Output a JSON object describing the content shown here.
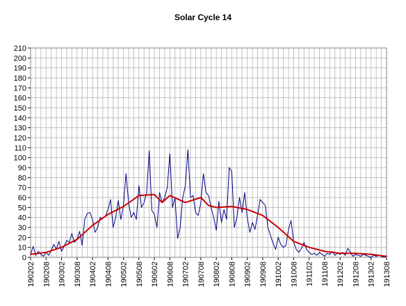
{
  "chart_data": {
    "type": "line",
    "title": "Solar Cycle 14",
    "xlabel": "",
    "ylabel": "",
    "ylim": [
      0,
      210
    ],
    "y_ticks": [
      0,
      10,
      20,
      30,
      40,
      50,
      60,
      70,
      80,
      90,
      100,
      110,
      120,
      130,
      140,
      150,
      160,
      170,
      180,
      190,
      200,
      210
    ],
    "x_tick_labels": [
      "190202",
      "190208",
      "190302",
      "190308",
      "190402",
      "190408",
      "190502",
      "190508",
      "190602",
      "190608",
      "190702",
      "190708",
      "190802",
      "190808",
      "190902",
      "190908",
      "191002",
      "191008",
      "191102",
      "191108",
      "191202",
      "191208",
      "191302",
      "191308"
    ],
    "x_start": "1902-02",
    "x_end": "1913-08",
    "grid": true,
    "legend": "none",
    "series": [
      {
        "color": "#000080",
        "kind": "monthly",
        "keys": [
          [
            "1902-02",
            3
          ],
          [
            "1902-03",
            11
          ],
          [
            "1902-04",
            2
          ],
          [
            "1902-05",
            6
          ],
          [
            "1902-06",
            3
          ],
          [
            "1902-07",
            1
          ],
          [
            "1902-08",
            5
          ],
          [
            "1902-09",
            2
          ],
          [
            "1902-10",
            7
          ],
          [
            "1902-11",
            13
          ],
          [
            "1902-12",
            8
          ],
          [
            "1903-01",
            16
          ],
          [
            "1903-02",
            6
          ],
          [
            "1903-03",
            11
          ],
          [
            "1903-04",
            17
          ],
          [
            "1903-05",
            15
          ],
          [
            "1903-06",
            24
          ],
          [
            "1903-07",
            15
          ],
          [
            "1903-08",
            18
          ],
          [
            "1903-09",
            26
          ],
          [
            "1903-10",
            12
          ],
          [
            "1903-11",
            38
          ],
          [
            "1903-12",
            44
          ],
          [
            "1904-01",
            45
          ],
          [
            "1904-02",
            38
          ],
          [
            "1904-03",
            25
          ],
          [
            "1904-04",
            30
          ],
          [
            "1904-05",
            40
          ],
          [
            "1904-06",
            39
          ],
          [
            "1904-07",
            41
          ],
          [
            "1904-08",
            48
          ],
          [
            "1904-09",
            58
          ],
          [
            "1904-10",
            30
          ],
          [
            "1904-11",
            40
          ],
          [
            "1904-12",
            57
          ],
          [
            "1905-01",
            38
          ],
          [
            "1905-02",
            52
          ],
          [
            "1905-03",
            84
          ],
          [
            "1905-04",
            55
          ],
          [
            "1905-05",
            40
          ],
          [
            "1905-06",
            45
          ],
          [
            "1905-07",
            38
          ],
          [
            "1905-08",
            72
          ],
          [
            "1905-09",
            50
          ],
          [
            "1905-10",
            55
          ],
          [
            "1905-11",
            65
          ],
          [
            "1905-12",
            107
          ],
          [
            "1906-01",
            47
          ],
          [
            "1906-02",
            43
          ],
          [
            "1906-03",
            30
          ],
          [
            "1906-04",
            65
          ],
          [
            "1906-05",
            55
          ],
          [
            "1906-06",
            60
          ],
          [
            "1906-07",
            70
          ],
          [
            "1906-08",
            104
          ],
          [
            "1906-09",
            50
          ],
          [
            "1906-10",
            60
          ],
          [
            "1906-11",
            19
          ],
          [
            "1906-12",
            30
          ],
          [
            "1907-01",
            60
          ],
          [
            "1907-02",
            72
          ],
          [
            "1907-03",
            108
          ],
          [
            "1907-04",
            60
          ],
          [
            "1907-05",
            62
          ],
          [
            "1907-06",
            45
          ],
          [
            "1907-07",
            42
          ],
          [
            "1907-08",
            55
          ],
          [
            "1907-09",
            84
          ],
          [
            "1907-10",
            65
          ],
          [
            "1907-11",
            62
          ],
          [
            "1907-12",
            50
          ],
          [
            "1908-01",
            40
          ],
          [
            "1908-02",
            27
          ],
          [
            "1908-03",
            56
          ],
          [
            "1908-04",
            35
          ],
          [
            "1908-05",
            48
          ],
          [
            "1908-06",
            38
          ],
          [
            "1908-07",
            90
          ],
          [
            "1908-08",
            86
          ],
          [
            "1908-09",
            30
          ],
          [
            "1908-10",
            40
          ],
          [
            "1908-11",
            60
          ],
          [
            "1908-12",
            45
          ],
          [
            "1909-01",
            65
          ],
          [
            "1909-02",
            40
          ],
          [
            "1909-03",
            25
          ],
          [
            "1909-04",
            35
          ],
          [
            "1909-05",
            28
          ],
          [
            "1909-06",
            42
          ],
          [
            "1909-07",
            58
          ],
          [
            "1909-08",
            55
          ],
          [
            "1909-09",
            52
          ],
          [
            "1909-10",
            30
          ],
          [
            "1909-11",
            22
          ],
          [
            "1909-12",
            14
          ],
          [
            "1910-01",
            8
          ],
          [
            "1910-02",
            20
          ],
          [
            "1910-03",
            13
          ],
          [
            "1910-04",
            10
          ],
          [
            "1910-05",
            12
          ],
          [
            "1910-06",
            28
          ],
          [
            "1910-07",
            37
          ],
          [
            "1910-08",
            15
          ],
          [
            "1910-09",
            8
          ],
          [
            "1910-10",
            5
          ],
          [
            "1910-11",
            9
          ],
          [
            "1910-12",
            15
          ],
          [
            "1911-01",
            8
          ],
          [
            "1911-02",
            5
          ],
          [
            "1911-03",
            3
          ],
          [
            "1911-04",
            4
          ],
          [
            "1911-05",
            2
          ],
          [
            "1911-06",
            5
          ],
          [
            "1911-07",
            3
          ],
          [
            "1911-08",
            1
          ],
          [
            "1911-09",
            4
          ],
          [
            "1911-10",
            3
          ],
          [
            "1911-11",
            6
          ],
          [
            "1911-12",
            2
          ],
          [
            "1912-01",
            4
          ],
          [
            "1912-02",
            3
          ],
          [
            "1912-03",
            5
          ],
          [
            "1912-04",
            2
          ],
          [
            "1912-05",
            9
          ],
          [
            "1912-06",
            5
          ],
          [
            "1912-07",
            1
          ],
          [
            "1912-08",
            3
          ],
          [
            "1912-09",
            2
          ],
          [
            "1912-10",
            1
          ],
          [
            "1912-11",
            3
          ],
          [
            "1912-12",
            2
          ],
          [
            "1913-01",
            1
          ],
          [
            "1913-02",
            0
          ],
          [
            "1913-03",
            2
          ],
          [
            "1913-04",
            1
          ],
          [
            "1913-05",
            2
          ],
          [
            "1913-06",
            1
          ],
          [
            "1913-07",
            0
          ],
          [
            "1913-08",
            1
          ]
        ]
      },
      {
        "color": "#cc0000",
        "kind": "smoothed",
        "keys": [
          [
            "1902-02",
            3
          ],
          [
            "1902-08",
            5
          ],
          [
            "1903-02",
            10
          ],
          [
            "1903-08",
            18
          ],
          [
            "1904-02",
            32
          ],
          [
            "1904-08",
            43
          ],
          [
            "1905-02",
            51
          ],
          [
            "1905-08",
            62
          ],
          [
            "1906-02",
            63
          ],
          [
            "1906-05",
            55
          ],
          [
            "1906-08",
            62
          ],
          [
            "1907-02",
            55
          ],
          [
            "1907-08",
            60
          ],
          [
            "1907-11",
            52
          ],
          [
            "1908-02",
            50
          ],
          [
            "1908-08",
            51
          ],
          [
            "1909-02",
            48
          ],
          [
            "1909-08",
            42
          ],
          [
            "1910-02",
            30
          ],
          [
            "1910-08",
            16
          ],
          [
            "1911-02",
            10
          ],
          [
            "1911-08",
            6
          ],
          [
            "1912-02",
            4
          ],
          [
            "1912-08",
            4
          ],
          [
            "1913-02",
            3
          ],
          [
            "1913-08",
            1
          ]
        ]
      }
    ]
  }
}
